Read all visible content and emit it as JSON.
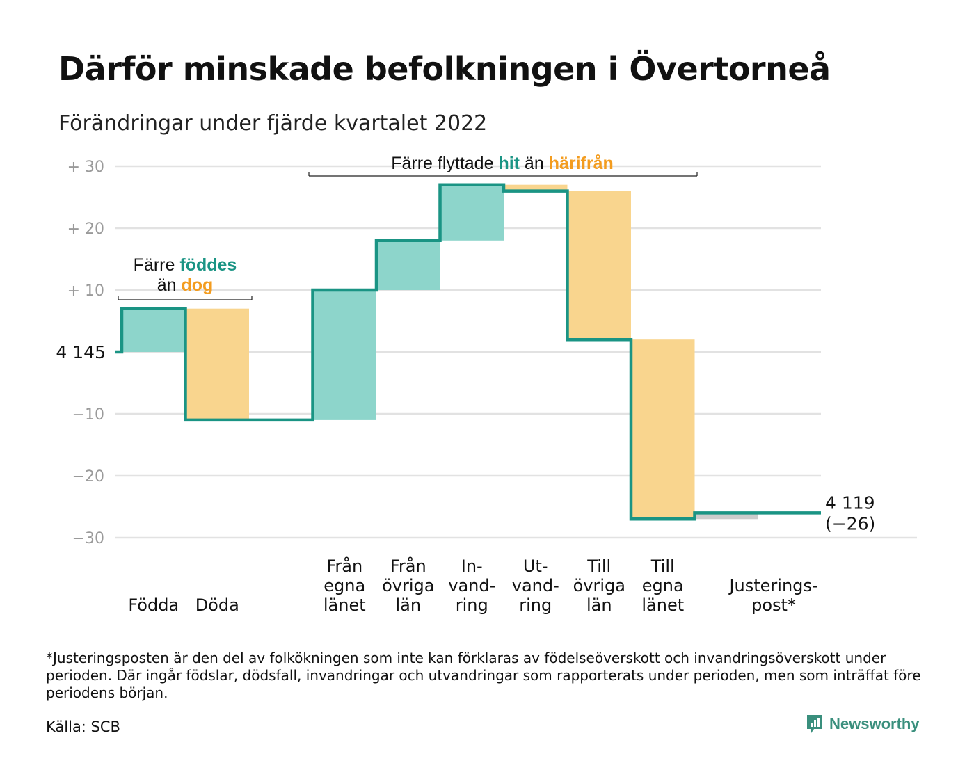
{
  "header": {
    "title": "Därför minskade befolkningen i Övertorneå",
    "subtitle": "Förändringar under fjärde kvartalet 2022"
  },
  "chart_data": {
    "type": "waterfall",
    "start_label": "4 145",
    "end_label": [
      "4 119",
      "(−26)"
    ],
    "ylim": [
      -30,
      30
    ],
    "yticks": [
      {
        "value": 30,
        "label": "+ 30"
      },
      {
        "value": 20,
        "label": "+ 20"
      },
      {
        "value": 10,
        "label": "+ 10"
      },
      {
        "value": 0,
        "label": ""
      },
      {
        "value": -10,
        "label": "−10"
      },
      {
        "value": -20,
        "label": "−20"
      },
      {
        "value": -30,
        "label": "−30"
      }
    ],
    "steps": [
      {
        "label": [
          "Födda"
        ],
        "change": 7,
        "kind": "in"
      },
      {
        "label": [
          "Döda"
        ],
        "change": -18,
        "kind": "out"
      },
      {
        "label": [],
        "change": 0,
        "kind": "gap"
      },
      {
        "label": [
          "Från",
          "egna",
          "länet"
        ],
        "change": 21,
        "kind": "in"
      },
      {
        "label": [
          "Från",
          "övriga",
          "län"
        ],
        "change": 8,
        "kind": "in"
      },
      {
        "label": [
          "In-",
          "vand-",
          "ring"
        ],
        "change": 9,
        "kind": "in"
      },
      {
        "label": [
          "Ut-",
          "vand-",
          "ring"
        ],
        "change": -1,
        "kind": "out"
      },
      {
        "label": [
          "Till",
          "övriga",
          "län"
        ],
        "change": -24,
        "kind": "out"
      },
      {
        "label": [
          "Till",
          "egna",
          "länet"
        ],
        "change": -29,
        "kind": "out"
      },
      {
        "label": [
          "Justerings-",
          "post*"
        ],
        "change": 1,
        "kind": "adjust"
      }
    ],
    "annotations": {
      "births": {
        "line1": "Färre",
        "births_word": "föddes",
        "line2": "än",
        "deaths_word": "dog"
      },
      "moves": {
        "prefix": "Färre flyttade",
        "hit_word": "hit",
        "middle": "än",
        "from_word": "härifrån"
      }
    },
    "colors": {
      "in": "#8dd5cb",
      "out": "#f9d58e",
      "adjust": "#cccccc",
      "line": "#1a9484",
      "accent_teal": "#1a9484",
      "accent_orange": "#f39c1f",
      "grid": "#e2e2e2",
      "tick_text": "#9a9a9a"
    }
  },
  "footnote": "*Justeringsposten är den del av folkökningen som inte kan förklaras av födelseöverskott och invandringsöverskott under perioden. Där ingår födslar, dödsfall, invandringar och utvandringar som rapporterats under perioden, men som inträffat före periodens början.",
  "source": "Källa: SCB",
  "brand": {
    "name": "Newsworthy",
    "icon": "newsworthy-logo-icon"
  }
}
